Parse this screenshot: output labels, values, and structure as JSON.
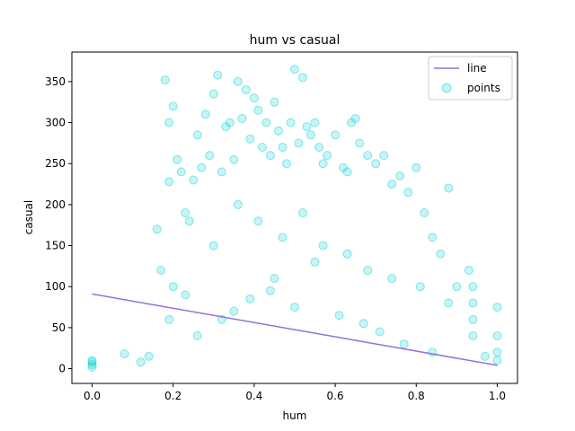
{
  "chart_data": {
    "type": "scatter",
    "title": "hum vs casual",
    "xlabel": "hum",
    "ylabel": "casual",
    "xlim": [
      -0.05,
      1.05
    ],
    "ylim": [
      -18,
      386
    ],
    "xticks": [
      0.0,
      0.2,
      0.4,
      0.6,
      0.8,
      1.0
    ],
    "xtick_labels": [
      "0.0",
      "0.2",
      "0.4",
      "0.6",
      "0.8",
      "1.0"
    ],
    "yticks": [
      0,
      50,
      100,
      150,
      200,
      250,
      300,
      350
    ],
    "ytick_labels": [
      "0",
      "50",
      "100",
      "150",
      "200",
      "250",
      "300",
      "350"
    ],
    "grid": false,
    "legend_position": "top-right",
    "series": [
      {
        "name": "line",
        "kind": "line",
        "color": "#9370db",
        "x": [
          0.0,
          1.0
        ],
        "y": [
          91,
          4
        ]
      },
      {
        "name": "points",
        "kind": "scatter",
        "color": "#00ced1",
        "alpha": 0.22,
        "x": [
          0.0,
          0.0,
          0.0,
          0.0,
          0.08,
          0.12,
          0.14,
          0.16,
          0.17,
          0.18,
          0.19,
          0.19,
          0.2,
          0.2,
          0.21,
          0.22,
          0.23,
          0.24,
          0.25,
          0.26,
          0.27,
          0.28,
          0.29,
          0.3,
          0.31,
          0.32,
          0.33,
          0.34,
          0.35,
          0.36,
          0.37,
          0.38,
          0.39,
          0.4,
          0.41,
          0.42,
          0.43,
          0.44,
          0.45,
          0.46,
          0.47,
          0.48,
          0.49,
          0.5,
          0.51,
          0.52,
          0.53,
          0.54,
          0.55,
          0.56,
          0.57,
          0.58,
          0.6,
          0.62,
          0.63,
          0.64,
          0.65,
          0.66,
          0.68,
          0.7,
          0.72,
          0.74,
          0.76,
          0.78,
          0.8,
          0.82,
          0.84,
          0.86,
          0.88,
          0.9,
          0.93,
          0.94,
          0.94,
          0.94,
          0.97,
          1.0,
          1.0,
          1.0,
          0.19,
          0.23,
          0.3,
          0.36,
          0.41,
          0.47,
          0.52,
          0.57,
          0.63,
          0.68,
          0.74,
          0.81,
          0.88,
          0.94,
          1.0,
          0.35,
          0.45,
          0.55,
          0.26,
          0.32,
          0.39,
          0.44,
          0.5,
          0.61,
          0.67,
          0.71,
          0.77,
          0.84
        ],
        "y": [
          2,
          5,
          8,
          10,
          18,
          8,
          15,
          170,
          120,
          352,
          228,
          300,
          100,
          320,
          255,
          240,
          190,
          180,
          230,
          285,
          245,
          310,
          260,
          335,
          358,
          240,
          295,
          300,
          255,
          350,
          305,
          340,
          280,
          330,
          315,
          270,
          300,
          260,
          325,
          290,
          270,
          250,
          300,
          365,
          275,
          355,
          295,
          285,
          300,
          270,
          250,
          260,
          285,
          245,
          240,
          300,
          305,
          275,
          260,
          250,
          260,
          225,
          235,
          215,
          245,
          190,
          160,
          140,
          220,
          100,
          120,
          80,
          40,
          100,
          15,
          75,
          40,
          10,
          60,
          90,
          150,
          200,
          180,
          160,
          190,
          150,
          140,
          120,
          110,
          100,
          80,
          60,
          20,
          70,
          110,
          130,
          40,
          60,
          85,
          95,
          75,
          65,
          55,
          45,
          30,
          20
        ]
      }
    ]
  }
}
